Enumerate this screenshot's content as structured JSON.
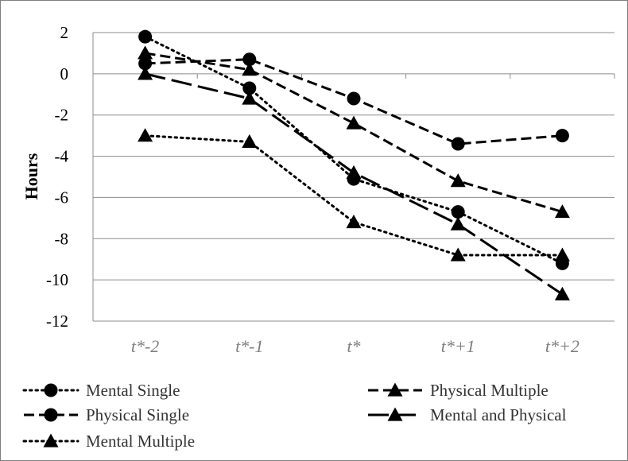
{
  "chart_data": {
    "type": "line",
    "title": "",
    "xlabel": "",
    "ylabel": "Hours",
    "categories": [
      "t*-2",
      "t*-1",
      "t*",
      "t*+1",
      "t*+2"
    ],
    "ylim": [
      -12,
      2
    ],
    "yticks": [
      2,
      0,
      -2,
      -4,
      -6,
      -8,
      -10,
      -12
    ],
    "grid": "horizontal",
    "legend_position": "bottom",
    "series": [
      {
        "name": "Mental Single",
        "values": [
          1.8,
          -0.7,
          -5.1,
          -6.7,
          -9.2
        ],
        "line": "dotted",
        "marker": "circle"
      },
      {
        "name": "Physical Single",
        "values": [
          0.5,
          0.7,
          -1.2,
          -3.4,
          -3.0
        ],
        "line": "dashed",
        "marker": "circle"
      },
      {
        "name": "Mental Multiple",
        "values": [
          -3.0,
          -3.3,
          -7.2,
          -8.8,
          -8.8
        ],
        "line": "dotted",
        "marker": "triangle"
      },
      {
        "name": "Physical Multiple",
        "values": [
          1.0,
          0.2,
          -2.4,
          -5.2,
          -6.7
        ],
        "line": "dashed",
        "marker": "triangle"
      },
      {
        "name": "Mental and Physical",
        "values": [
          0.0,
          -1.2,
          -4.8,
          -7.3,
          -10.7
        ],
        "line": "longdash",
        "marker": "triangle"
      }
    ]
  }
}
